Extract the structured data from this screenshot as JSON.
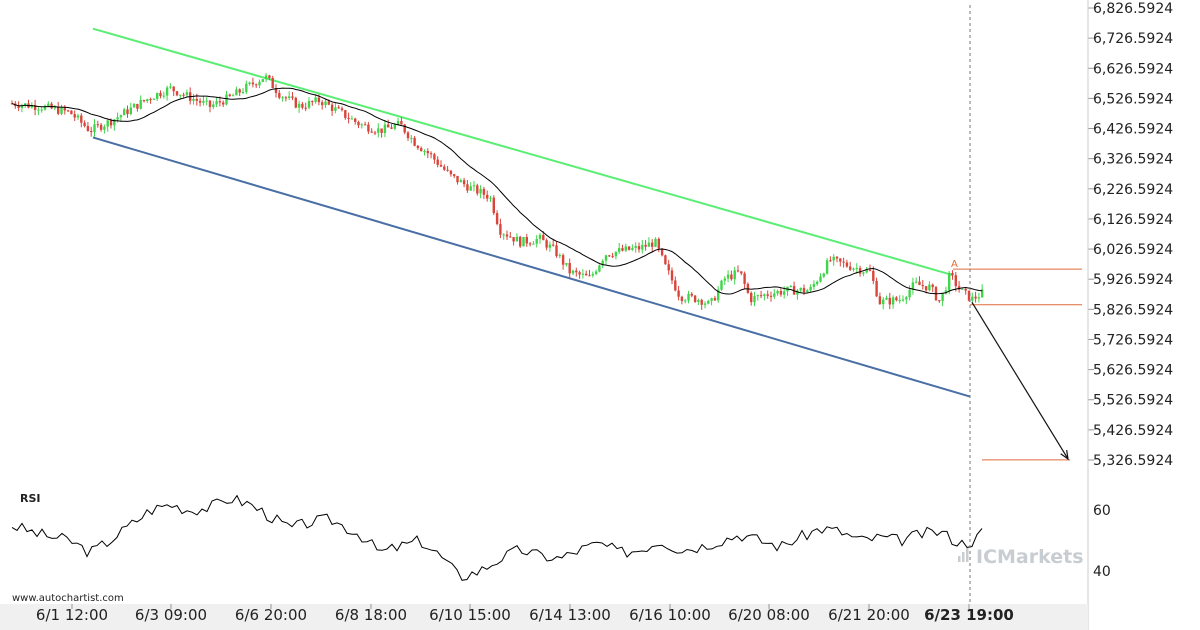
{
  "chart_data": {
    "type": "candlestick",
    "title": "",
    "price_axis": {
      "ticks": [
        "6,826.5924",
        "6,726.5924",
        "6,626.5924",
        "6,526.5924",
        "6,426.5924",
        "6,326.5924",
        "6,226.5924",
        "6,126.5924",
        "6,026.5924",
        "5,926.5924",
        "5,826.5924",
        "5,726.5924",
        "5,626.5924",
        "5,526.5924",
        "5,426.5924",
        "5,326.5924"
      ],
      "range": [
        5290,
        6830
      ]
    },
    "time_axis": {
      "ticks": [
        "6/1 12:00",
        "6/3 09:00",
        "6/6 20:00",
        "6/8 18:00",
        "6/10 15:00",
        "6/14 13:00",
        "6/16 10:00",
        "6/20 08:00",
        "6/21 20:00",
        "6/23 19:00"
      ],
      "highlighted_tick": "6/23 19:00"
    },
    "colors": {
      "up_candle": "#3fd44a",
      "down_candle": "#d9453b",
      "resistance": "#5aee74",
      "support": "#4a6fa5",
      "moving_average": "#000000",
      "level_lines": "#e06a3a",
      "rsi": "#000000"
    },
    "channel": {
      "resistance": {
        "start": [
          "6/1 12:00",
          6758
        ],
        "end": [
          "6/23 19:00",
          5940
        ]
      },
      "support": {
        "start": [
          "6/1 12:00",
          6397
        ],
        "end": [
          "6/23 19:00",
          5537
        ]
      }
    },
    "levels": [
      5960,
      5842,
      5327
    ],
    "point_label": "A",
    "forecast_arrow": {
      "from": 5850,
      "to": 5330
    },
    "rsi": {
      "label": "RSI",
      "ticks": [
        "60",
        "40"
      ],
      "range": [
        32,
        68
      ]
    },
    "source": "www.autochartist.com",
    "watermark": "ICMarkets"
  }
}
